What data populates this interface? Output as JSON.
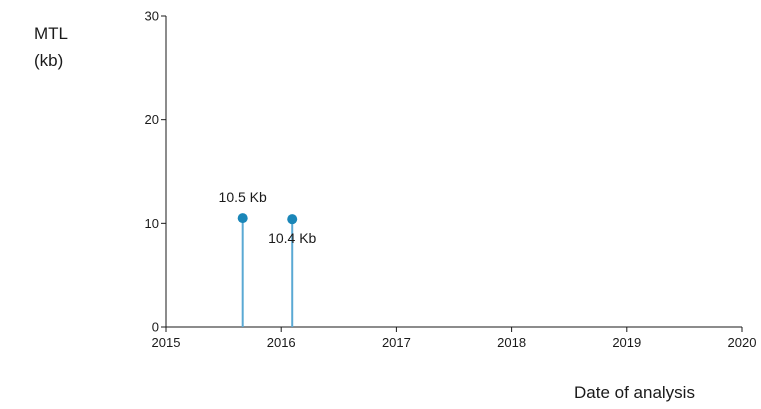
{
  "chart_data": {
    "type": "scatter",
    "ylabel_lines": [
      "MTL",
      "(kb)"
    ],
    "xlabel": "Date of analysis",
    "xlim": [
      2015,
      2020
    ],
    "ylim": [
      0,
      30
    ],
    "x_ticks": [
      "2015",
      "2016",
      "2017",
      "2018",
      "2019",
      "2020"
    ],
    "y_ticks": [
      "0",
      "10",
      "20",
      "30"
    ],
    "grid": false,
    "legend": "none",
    "stems": true,
    "series": [
      {
        "color": "#1a86b8",
        "points": [
          {
            "x": "2015-09-01",
            "y": 10.5,
            "label": "10.5 Kb"
          },
          {
            "x": "2016-02-05",
            "y": 10.4,
            "label": "10.4 Kb"
          }
        ]
      }
    ],
    "colors": {
      "axis": "#1a1a1a",
      "marker": "#1a86b8",
      "stem": "#5aa9d4"
    }
  }
}
